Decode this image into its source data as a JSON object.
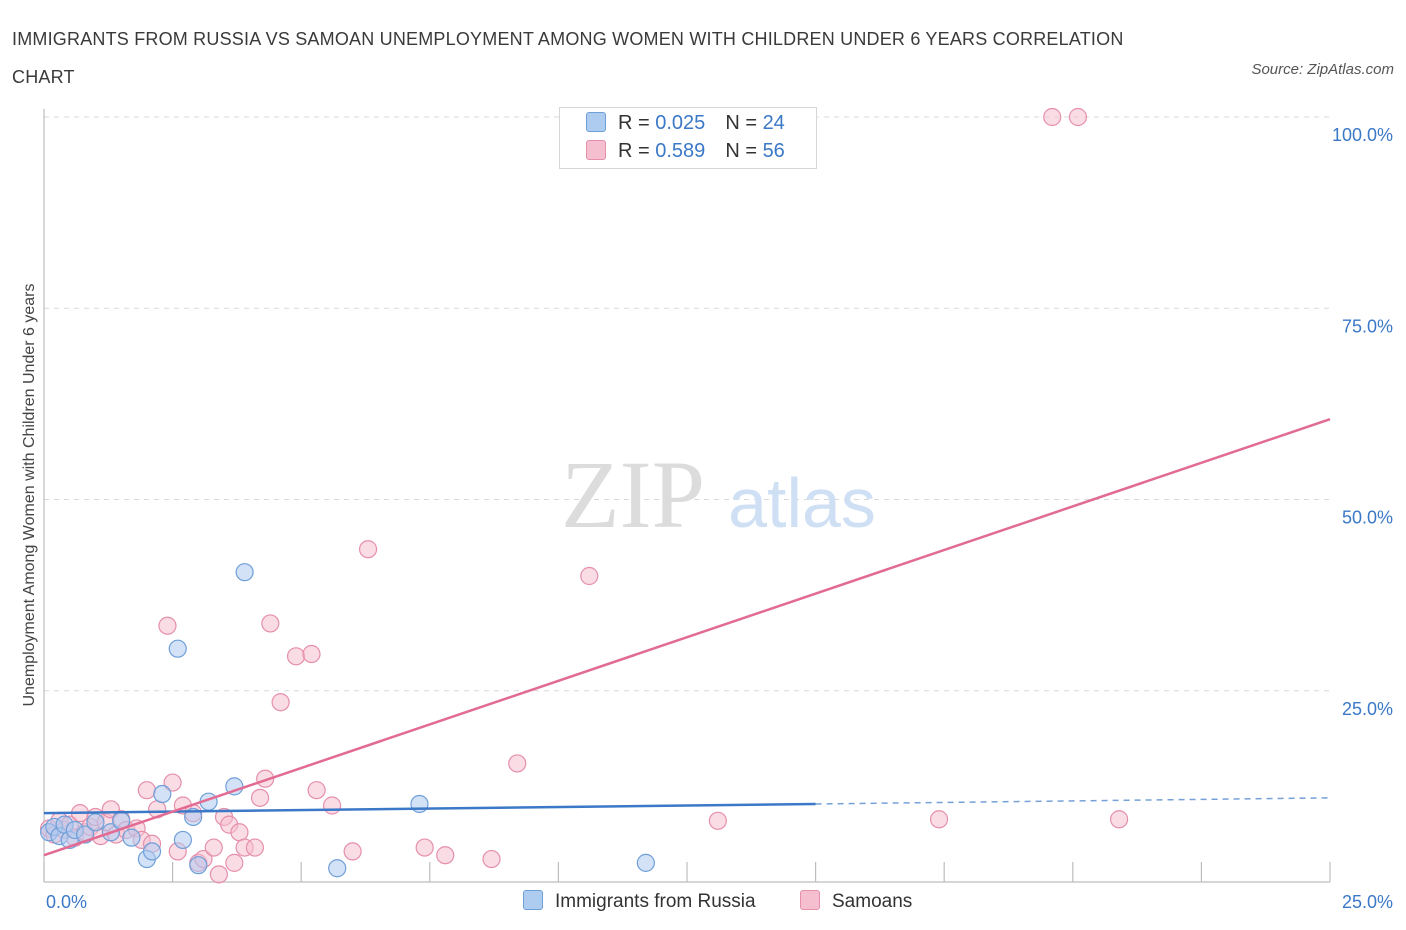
{
  "title": "IMMIGRANTS FROM RUSSIA VS SAMOAN UNEMPLOYMENT AMONG WOMEN WITH CHILDREN UNDER 6 YEARS CORRELATION CHART",
  "source": "Source: ZipAtlas.com",
  "watermark": {
    "zip": "ZIP",
    "atlas": "atlas"
  },
  "legend": {
    "russia": {
      "r_label": "R = ",
      "r_value": "0.025",
      "n_label": "N = ",
      "n_value": "24"
    },
    "samoan": {
      "r_label": "R = ",
      "r_value": "0.589",
      "n_label": "N = ",
      "n_value": "56"
    }
  },
  "colors": {
    "russia": "#3b78c7",
    "russia_fill": "#aecbf0",
    "samoan": "#e26b93",
    "samoan_fill": "#f6bfd0",
    "tick": "#3b78c7",
    "grid": "#d9d9d9"
  },
  "chart_data": {
    "type": "scatter",
    "title": "IMMIGRANTS FROM RUSSIA VS SAMOAN UNEMPLOYMENT AMONG WOMEN WITH CHILDREN UNDER 6 YEARS CORRELATION CHART",
    "xlabel": "",
    "ylabel": "Unemployment Among Women with Children Under 6 years",
    "xlim": [
      0,
      25
    ],
    "ylim": [
      0,
      100
    ],
    "x_tick_labels": [
      "0.0%",
      "25.0%"
    ],
    "y_tick_labels": [
      "25.0%",
      "50.0%",
      "75.0%",
      "100.0%"
    ],
    "series": [
      {
        "name": "Immigrants from Russia",
        "trend": {
          "x0": 0,
          "y0": 9.0,
          "x1": 15,
          "y1": 10.2,
          "dashed_to_x": 25,
          "dashed_to_y": 11.0
        },
        "points": [
          [
            0.1,
            6.5
          ],
          [
            0.2,
            7.2
          ],
          [
            0.3,
            6.0
          ],
          [
            0.4,
            7.5
          ],
          [
            0.5,
            5.5
          ],
          [
            0.6,
            6.8
          ],
          [
            0.8,
            6.2
          ],
          [
            1.0,
            7.8
          ],
          [
            1.3,
            6.5
          ],
          [
            1.5,
            8.0
          ],
          [
            1.7,
            5.8
          ],
          [
            2.0,
            3.0
          ],
          [
            2.1,
            4.0
          ],
          [
            2.3,
            11.5
          ],
          [
            2.6,
            30.5
          ],
          [
            2.7,
            5.5
          ],
          [
            2.9,
            8.5
          ],
          [
            3.0,
            2.2
          ],
          [
            3.2,
            10.5
          ],
          [
            3.7,
            12.5
          ],
          [
            3.9,
            40.5
          ],
          [
            5.7,
            1.8
          ],
          [
            7.3,
            10.2
          ],
          [
            11.7,
            2.5
          ]
        ]
      },
      {
        "name": "Samoans",
        "trend": {
          "x0": 0,
          "y0": 3.5,
          "x1": 25,
          "y1": 60.5
        },
        "points": [
          [
            0.1,
            7.0
          ],
          [
            0.2,
            6.2
          ],
          [
            0.3,
            8.0
          ],
          [
            0.4,
            6.8
          ],
          [
            0.5,
            7.5
          ],
          [
            0.6,
            5.8
          ],
          [
            0.7,
            9.0
          ],
          [
            0.8,
            6.5
          ],
          [
            0.9,
            7.2
          ],
          [
            1.0,
            8.5
          ],
          [
            1.1,
            6.0
          ],
          [
            1.2,
            7.8
          ],
          [
            1.3,
            9.5
          ],
          [
            1.4,
            6.2
          ],
          [
            1.5,
            8.2
          ],
          [
            1.6,
            6.8
          ],
          [
            1.8,
            7.0
          ],
          [
            1.9,
            5.5
          ],
          [
            2.0,
            12.0
          ],
          [
            2.1,
            5.0
          ],
          [
            2.2,
            9.5
          ],
          [
            2.4,
            33.5
          ],
          [
            2.5,
            13.0
          ],
          [
            2.6,
            4.0
          ],
          [
            2.7,
            10.0
          ],
          [
            2.9,
            9.0
          ],
          [
            3.0,
            2.5
          ],
          [
            3.1,
            3.0
          ],
          [
            3.3,
            4.5
          ],
          [
            3.4,
            1.0
          ],
          [
            3.5,
            8.5
          ],
          [
            3.6,
            7.5
          ],
          [
            3.7,
            2.5
          ],
          [
            3.8,
            6.5
          ],
          [
            3.9,
            4.5
          ],
          [
            4.1,
            4.5
          ],
          [
            4.2,
            11.0
          ],
          [
            4.3,
            13.5
          ],
          [
            4.4,
            33.8
          ],
          [
            4.6,
            23.5
          ],
          [
            4.9,
            29.5
          ],
          [
            5.2,
            29.8
          ],
          [
            5.3,
            12.0
          ],
          [
            5.6,
            10.0
          ],
          [
            6.0,
            4.0
          ],
          [
            6.3,
            43.5
          ],
          [
            7.4,
            4.5
          ],
          [
            7.8,
            3.5
          ],
          [
            8.7,
            3.0
          ],
          [
            9.2,
            15.5
          ],
          [
            10.6,
            40.0
          ],
          [
            13.1,
            8.0
          ],
          [
            17.4,
            8.2
          ],
          [
            19.6,
            100.0
          ],
          [
            20.1,
            100.0
          ],
          [
            20.9,
            8.2
          ]
        ]
      }
    ]
  },
  "bottom_legend": {
    "russia": "Immigrants from Russia",
    "samoan": "Samoans"
  }
}
